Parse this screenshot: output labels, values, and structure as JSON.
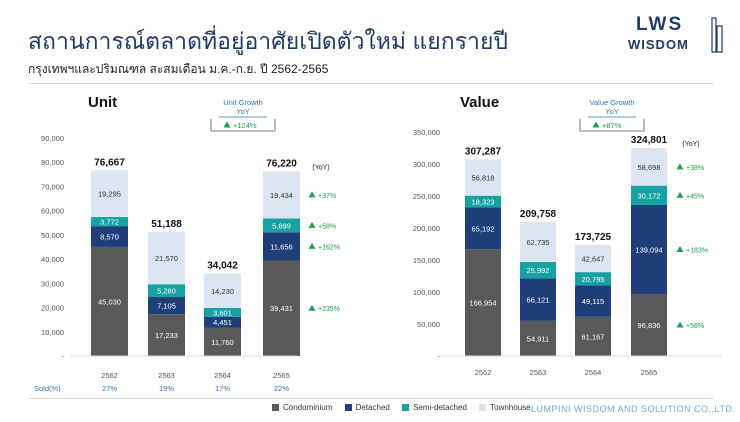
{
  "header": {
    "title": "สถานการณ์ตลาดที่อยู่อาศัยเปิดตัวใหม่ แยกรายปี",
    "subtitle": "กรุงเทพฯและปริมณฑล สะสมเดือน ม.ค.-ก.ย. ปี 2562-2565",
    "logo_top": "LWS",
    "logo_bottom": "WISDOM"
  },
  "footer": {
    "company": "LUMPINI WISDOM AND SOLUTION CO.,LTD."
  },
  "colors": {
    "Condominium": "#595959",
    "Detached": "#1f3f7a",
    "Semi-detached": "#17a2a2",
    "Townhouse": "#dce6f2",
    "growth_arrow": "#1fa34a",
    "title": "#1f3a6b",
    "axis_text": "#5a6a8a"
  },
  "chart_data": [
    {
      "type": "bar",
      "stacked": true,
      "title": "Unit",
      "categories": [
        "2562",
        "2563",
        "2564",
        "2565"
      ],
      "ylim": [
        0,
        90000
      ],
      "yticks": [
        "-",
        "10,000",
        "20,000",
        "30,000",
        "40,000",
        "50,000",
        "60,000",
        "70,000",
        "80,000",
        "90,000"
      ],
      "series": [
        {
          "name": "Condominium",
          "values": [
            45030,
            17233,
            11760,
            39431
          ],
          "labels": [
            "45,030",
            "17,233",
            "11,760",
            "39,431"
          ]
        },
        {
          "name": "Detached",
          "values": [
            8570,
            7105,
            4451,
            11656
          ],
          "labels": [
            "8,570",
            "7,105",
            "4,451",
            "11,656"
          ]
        },
        {
          "name": "Semi-detached",
          "values": [
            3772,
            5280,
            3601,
            5699
          ],
          "labels": [
            "3,772",
            "5,280",
            "3,601",
            "5,699"
          ]
        },
        {
          "name": "Townhouse",
          "values": [
            19295,
            21570,
            14230,
            19434
          ],
          "labels": [
            "19,295",
            "21,570",
            "14,230",
            "19,434"
          ]
        }
      ],
      "totals": [
        "76,667",
        "51,188",
        "34,042",
        "76,220"
      ],
      "yoy_label": "(YoY)",
      "yoy_by_segment": [
        "+235%",
        "+162%",
        "+58%",
        "+37%"
      ],
      "growth_box": {
        "title": "Unit Growth",
        "label": "YoY",
        "value": "+124%"
      },
      "sold": {
        "label": "Sold(%)",
        "values": [
          "27%",
          "19%",
          "17%",
          "22%"
        ]
      }
    },
    {
      "type": "bar",
      "stacked": true,
      "title": "Value",
      "categories": [
        "2562",
        "2563",
        "2564",
        "2565"
      ],
      "ylim": [
        0,
        350000
      ],
      "yticks": [
        "-",
        "50,000",
        "100,000",
        "150,000",
        "200,000",
        "250,000",
        "300,000",
        "350,000"
      ],
      "series": [
        {
          "name": "Condominium",
          "values": [
            166954,
            54911,
            61167,
            96836
          ],
          "labels": [
            "166,954",
            "54,911",
            "61,167",
            "96,836"
          ]
        },
        {
          "name": "Detached",
          "values": [
            65192,
            66121,
            49115,
            139094
          ],
          "labels": [
            "65,192",
            "66,121",
            "49,115",
            "139,094"
          ]
        },
        {
          "name": "Semi-detached",
          "values": [
            18323,
            25992,
            20795,
            30172
          ],
          "labels": [
            "18,323",
            "25,992",
            "20,795",
            "30,172"
          ]
        },
        {
          "name": "Townhouse",
          "values": [
            56818,
            62735,
            42647,
            58698
          ],
          "labels": [
            "56,818",
            "62,735",
            "42,647",
            "58,698"
          ]
        }
      ],
      "totals": [
        "307,287",
        "209,758",
        "173,725",
        "324,801"
      ],
      "yoy_label": "(YoY)",
      "yoy_by_segment": [
        "+58%",
        "+183%",
        "+45%",
        "+38%"
      ],
      "growth_box": {
        "title": "Value Growth",
        "label": "YoY",
        "value": "+87%"
      }
    }
  ]
}
